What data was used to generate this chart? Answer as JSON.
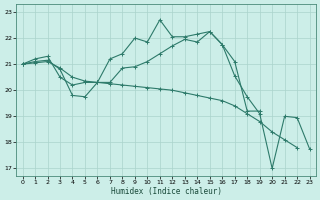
{
  "xlabel": "Humidex (Indice chaleur)",
  "bg_color": "#cceee8",
  "grid_color": "#aad4cc",
  "line_color": "#2d7a6a",
  "xlim": [
    -0.5,
    23.5
  ],
  "ylim": [
    16.7,
    23.3
  ],
  "yticks": [
    17,
    18,
    19,
    20,
    21,
    22,
    23
  ],
  "xticks": [
    0,
    1,
    2,
    3,
    4,
    5,
    6,
    7,
    8,
    9,
    10,
    11,
    12,
    13,
    14,
    15,
    16,
    17,
    18,
    19,
    20,
    21,
    22,
    23
  ],
  "series": [
    {
      "x": [
        0,
        1,
        2,
        3,
        4,
        5,
        6,
        7,
        8,
        9,
        10,
        11,
        12,
        13,
        14,
        15,
        16,
        17,
        18,
        19
      ],
      "y": [
        21.0,
        21.2,
        21.3,
        20.5,
        20.2,
        20.3,
        20.3,
        21.2,
        21.4,
        22.0,
        21.85,
        22.7,
        22.05,
        22.05,
        22.15,
        22.25,
        21.75,
        21.1,
        19.2,
        19.2
      ]
    },
    {
      "x": [
        0,
        1,
        2,
        3,
        4,
        5,
        6,
        7,
        8,
        9,
        10,
        11,
        12,
        13,
        14,
        15,
        16,
        17,
        18,
        19,
        20,
        21,
        22
      ],
      "y": [
        21.0,
        21.05,
        21.1,
        20.85,
        20.5,
        20.35,
        20.3,
        20.25,
        20.2,
        20.15,
        20.1,
        20.05,
        20.0,
        19.9,
        19.8,
        19.7,
        19.6,
        19.4,
        19.1,
        18.8,
        18.4,
        18.1,
        17.8
      ]
    },
    {
      "x": [
        0,
        1,
        2,
        3,
        4,
        5,
        6,
        7,
        8,
        9,
        10,
        11,
        12,
        13,
        14,
        15,
        16,
        17,
        18,
        19,
        20,
        21,
        22,
        23
      ],
      "y": [
        21.0,
        21.1,
        21.15,
        20.8,
        19.8,
        19.75,
        20.3,
        20.3,
        20.85,
        20.9,
        21.1,
        21.4,
        21.7,
        21.95,
        21.85,
        22.25,
        21.75,
        20.55,
        19.75,
        19.1,
        17.0,
        19.0,
        18.95,
        17.75
      ]
    }
  ]
}
